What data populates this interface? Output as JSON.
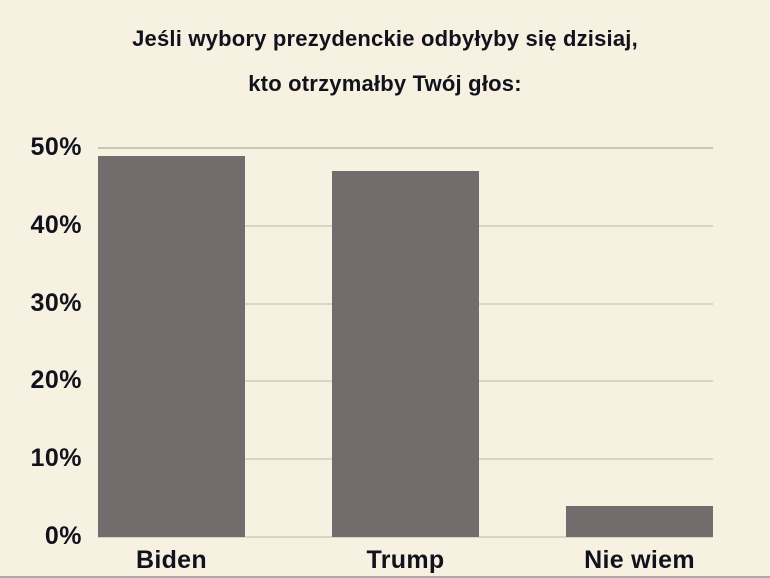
{
  "title": {
    "line1": "Jeśli wybory prezydenckie odbyłyby się dzisiaj,",
    "line2": "kto otrzymałby Twój głos:"
  },
  "chart_data": {
    "type": "bar",
    "title": "Jeśli wybory prezydenckie odbyłyby się dzisiaj, kto otrzymałby Twój głos:",
    "categories": [
      "Biden",
      "Trump",
      "Nie wiem"
    ],
    "values": [
      49,
      47,
      4
    ],
    "unit": "%",
    "xlabel": "",
    "ylabel": "",
    "ylim": [
      0,
      50
    ],
    "y_tick_step": 10,
    "y_tick_labels": [
      "50%",
      "40%",
      "30%",
      "20%",
      "10%",
      "0%"
    ],
    "grid": true,
    "legend": false
  },
  "colors": {
    "background": "#f7f1e2",
    "bar": "#736c6d",
    "gridline": "#dad4c2",
    "gridline_top": "#cbc5b3",
    "text": "#12121c",
    "bottom_edge": "#aba8ae"
  }
}
